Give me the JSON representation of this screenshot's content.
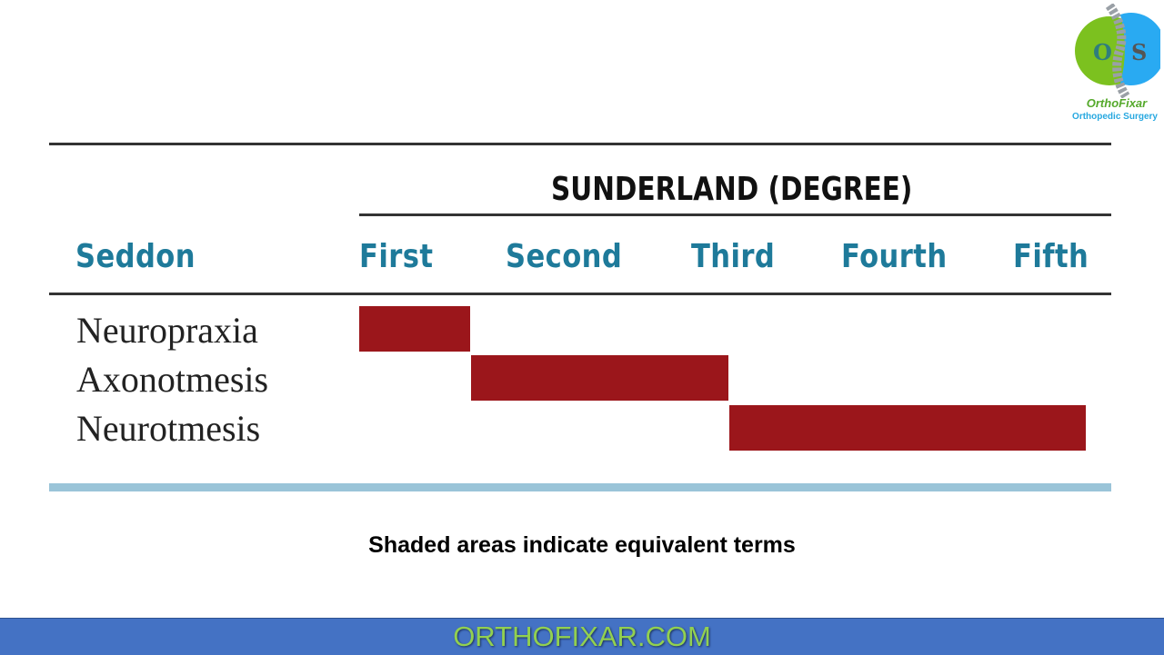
{
  "logo": {
    "name": "OrthoFixar",
    "tagline": "Orthopedic Surgery",
    "letters": [
      "O",
      "S"
    ],
    "colors": {
      "left": "#7cc11f",
      "right": "#29aaf2"
    }
  },
  "table": {
    "group_header": "SUNDERLAND (DEGREE)",
    "row_header": "Seddon",
    "columns": [
      "First",
      "Second",
      "Third",
      "Fourth",
      "Fifth"
    ],
    "rows": [
      {
        "label": "Neuropraxia",
        "sunderland_degrees": [
          "First"
        ]
      },
      {
        "label": "Axonotmesis",
        "sunderland_degrees": [
          "Second",
          "Third"
        ]
      },
      {
        "label": "Neurotmesis",
        "sunderland_degrees": [
          "Third",
          "Fourth",
          "Fifth"
        ]
      }
    ],
    "shade_color": "#9b161b",
    "header_color": "#1e7a9a"
  },
  "caption": "Shaded areas indicate equivalent terms",
  "footer": {
    "text": "ORTHOFIXAR.COM",
    "bg": "#4472c4",
    "color": "#92d050"
  }
}
